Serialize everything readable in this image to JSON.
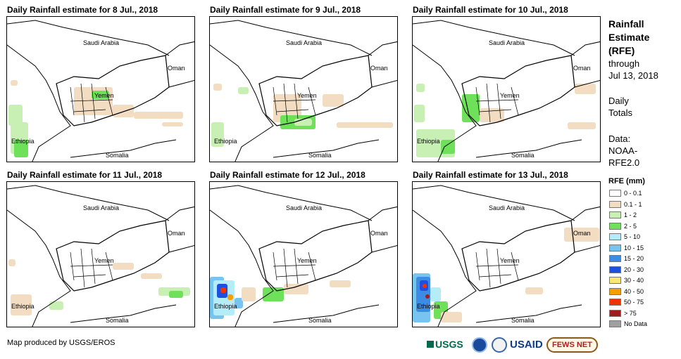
{
  "panels": [
    {
      "title": "Daily Rainfall estimate for 8 Jul., 2018",
      "labels": {
        "saudi": "Saudi Arabia",
        "oman": "Oman",
        "yemen": "Yemen",
        "ethiopia": "Ethiopia",
        "somalia": "Somalia"
      }
    },
    {
      "title": "Daily Rainfall estimate for 9 Jul., 2018",
      "labels": {
        "saudi": "Saudi Arabia",
        "oman": "Oman",
        "yemen": "Yemen",
        "ethiopia": "Ethiopia",
        "somalia": "Somalia"
      }
    },
    {
      "title": "Daily Rainfall estimate for 10 Jul., 2018",
      "labels": {
        "saudi": "Saudi Arabia",
        "oman": "Oman",
        "yemen": "Yemen",
        "ethiopia": "Ethiopia",
        "somalia": "Somalia"
      }
    },
    {
      "title": "Daily Rainfall estimate for 11 Jul., 2018",
      "labels": {
        "saudi": "Saudi Arabia",
        "oman": "Oman",
        "yemen": "Yemen",
        "ethiopia": "Ethiopia",
        "somalia": "Somalia"
      }
    },
    {
      "title": "Daily Rainfall estimate for 12 Jul., 2018",
      "labels": {
        "saudi": "Saudi Arabia",
        "oman": "Oman",
        "yemen": "Yemen",
        "ethiopia": "Ethiopia",
        "somalia": "Somalia"
      }
    },
    {
      "title": "Daily Rainfall estimate for 13 Jul., 2018",
      "labels": {
        "saudi": "Saudi Arabia",
        "oman": "Oman",
        "yemen": "Yemen",
        "ethiopia": "Ethiopia",
        "somalia": "Somalia"
      }
    }
  ],
  "sidebar": {
    "heading_lines": [
      "Rainfall",
      "Estimate",
      "(RFE)"
    ],
    "through": "through",
    "date": "Jul 13, 2018",
    "daily_lines": [
      "Daily",
      "Totals"
    ],
    "data_lines": [
      "Data:",
      "NOAA-",
      "RFE2.0"
    ],
    "legend_title": "RFE (mm)"
  },
  "legend": [
    {
      "label": "0 - 0.1",
      "color": "#ffffff"
    },
    {
      "label": "0.1 - 1",
      "color": "#f2dcc2"
    },
    {
      "label": "1 - 2",
      "color": "#c8f0b4"
    },
    {
      "label": "2 - 5",
      "color": "#6fe05a"
    },
    {
      "label": "5 - 10",
      "color": "#b4ecf8"
    },
    {
      "label": "10 - 15",
      "color": "#78c4f0"
    },
    {
      "label": "15 - 20",
      "color": "#3c8ce6"
    },
    {
      "label": "20 - 30",
      "color": "#1e50e0"
    },
    {
      "label": "30 - 40",
      "color": "#fce678"
    },
    {
      "label": "40 - 50",
      "color": "#f5a000"
    },
    {
      "label": "50 - 75",
      "color": "#f03200"
    },
    {
      "label": "> 75",
      "color": "#a01e1e"
    },
    {
      "label": "No Data",
      "color": "#a0a0a0"
    }
  ],
  "footer": "Map produced by USGS/EROS",
  "logos": {
    "usgs": "USGS",
    "usaid": "USAID",
    "fewsnet": "FEWS NET"
  }
}
